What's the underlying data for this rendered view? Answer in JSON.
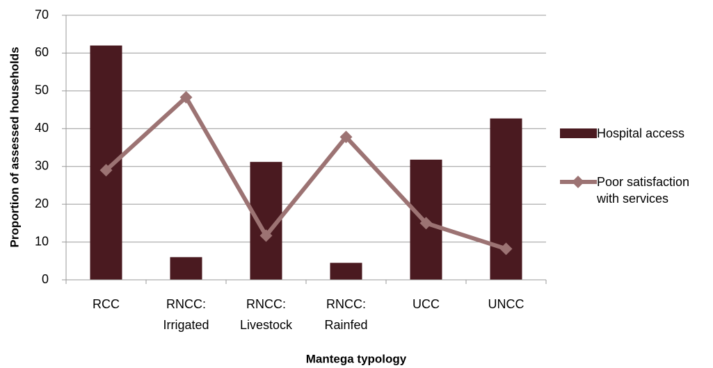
{
  "chart_data": {
    "type": "bar",
    "x_label": "Mantega typology",
    "y_label": "Proportion of assessed households",
    "categories": [
      [
        "RCC"
      ],
      [
        "RNCC:",
        "Irrigated"
      ],
      [
        "RNCC:",
        "Livestock"
      ],
      [
        "RNCC:",
        "Rainfed"
      ],
      [
        "UCC"
      ],
      [
        "UNCC"
      ]
    ],
    "series": [
      {
        "name": "Hospital access",
        "type": "bar",
        "color": "#4a1a20",
        "values": [
          62,
          6,
          31.2,
          4.5,
          31.8,
          42.7
        ]
      },
      {
        "name": "Poor satisfaction with services",
        "type": "line",
        "color": "#9c7373",
        "values": [
          29,
          48.3,
          11.7,
          37.8,
          15,
          8.2
        ]
      }
    ],
    "ylim": [
      0,
      70
    ],
    "yticks": [
      0,
      10,
      20,
      30,
      40,
      50,
      60,
      70
    ],
    "grid": true,
    "legend": "right"
  }
}
